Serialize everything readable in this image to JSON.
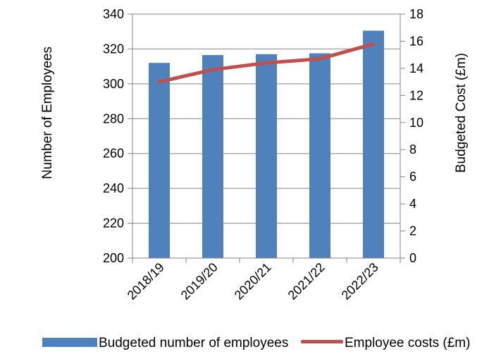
{
  "chart_data": {
    "type": "bar",
    "categories": [
      "2018/19",
      "2019/20",
      "2020/21",
      "2021/22",
      "2022/23"
    ],
    "series": [
      {
        "name": "Budgeted number of employees",
        "type": "bar",
        "axis": "left",
        "values": [
          312,
          316.5,
          317,
          317.5,
          330.5
        ],
        "color": "#4F81BD"
      },
      {
        "name": "Employee costs (£m)",
        "type": "line",
        "axis": "right",
        "values": [
          13.0,
          13.9,
          14.4,
          14.7,
          15.8
        ],
        "color": "#C0504D"
      }
    ],
    "ylabel": "Number of Employees",
    "y2label": "Budgeted Cost (£m)",
    "ylim": [
      200,
      340
    ],
    "y2lim": [
      0,
      18
    ],
    "yticks": [
      "200",
      "220",
      "240",
      "260",
      "280",
      "300",
      "320",
      "340"
    ],
    "y2ticks": [
      "0",
      "2",
      "4",
      "6",
      "8",
      "10",
      "12",
      "14",
      "16",
      "18"
    ],
    "grid": true,
    "legend_position": "bottom"
  }
}
